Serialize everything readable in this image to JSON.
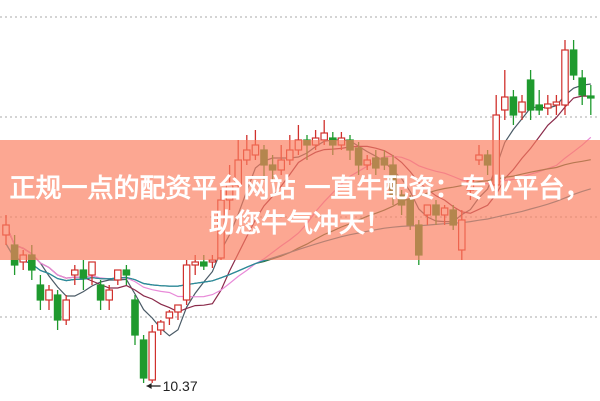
{
  "chart_data": {
    "type": "candlestick",
    "ylim": [
      10.19,
      14.2
    ],
    "gridlines": [
      14.03,
      13.03,
      12.03,
      11.03
    ],
    "grid": "dotted horizontal",
    "ohlc": [
      [
        11.85,
        12.05,
        11.75,
        11.95
      ],
      [
        11.75,
        11.85,
        11.45,
        11.55
      ],
      [
        11.58,
        11.7,
        11.5,
        11.65
      ],
      [
        11.65,
        11.75,
        11.4,
        11.5
      ],
      [
        11.35,
        11.45,
        11.1,
        11.2
      ],
      [
        11.2,
        11.35,
        11.1,
        11.3
      ],
      [
        11.25,
        11.3,
        10.9,
        11.0
      ],
      [
        11.0,
        11.25,
        10.95,
        11.2
      ],
      [
        11.45,
        11.55,
        11.35,
        11.5
      ],
      [
        11.5,
        11.6,
        11.3,
        11.42
      ],
      [
        11.45,
        11.58,
        11.35,
        11.58
      ],
      [
        11.35,
        11.4,
        11.1,
        11.2
      ],
      [
        11.2,
        11.35,
        11.1,
        11.3
      ],
      [
        11.4,
        11.5,
        11.35,
        11.5
      ],
      [
        11.5,
        11.55,
        11.35,
        11.45
      ],
      [
        11.2,
        11.25,
        10.75,
        10.85
      ],
      [
        10.8,
        10.85,
        10.37,
        10.42
      ],
      [
        10.4,
        10.95,
        10.37,
        10.88
      ],
      [
        10.9,
        11.0,
        10.85,
        10.98
      ],
      [
        11.02,
        11.1,
        10.95,
        11.08
      ],
      [
        11.08,
        11.15,
        11.0,
        11.15
      ],
      [
        11.2,
        11.6,
        11.15,
        11.55
      ],
      [
        11.55,
        11.65,
        11.45,
        11.58
      ],
      [
        11.58,
        11.65,
        11.5,
        11.54
      ],
      [
        11.58,
        11.65,
        11.52,
        11.6
      ],
      [
        11.62,
        12.3,
        11.6,
        12.2
      ],
      [
        12.2,
        12.55,
        12.1,
        12.35
      ],
      [
        12.35,
        12.8,
        12.3,
        12.6
      ],
      [
        12.6,
        12.85,
        12.55,
        12.7
      ],
      [
        12.65,
        12.9,
        12.6,
        12.75
      ],
      [
        12.7,
        12.75,
        12.4,
        12.55
      ],
      [
        12.55,
        12.65,
        12.4,
        12.5
      ],
      [
        12.5,
        12.75,
        12.45,
        12.6
      ],
      [
        12.6,
        12.85,
        12.55,
        12.7
      ],
      [
        12.7,
        12.95,
        12.65,
        12.8
      ],
      [
        12.8,
        12.85,
        12.6,
        12.75
      ],
      [
        12.75,
        12.9,
        12.7,
        12.82
      ],
      [
        12.8,
        13.0,
        12.75,
        12.87
      ],
      [
        12.82,
        12.88,
        12.65,
        12.75
      ],
      [
        12.75,
        12.88,
        12.7,
        12.82
      ],
      [
        12.8,
        12.85,
        12.6,
        12.7
      ],
      [
        12.72,
        12.78,
        12.45,
        12.55
      ],
      [
        12.55,
        12.65,
        12.5,
        12.6
      ],
      [
        12.62,
        12.7,
        12.45,
        12.52
      ],
      [
        12.62,
        12.7,
        12.5,
        12.55
      ],
      [
        12.55,
        12.65,
        12.15,
        12.25
      ],
      [
        12.25,
        12.3,
        12.05,
        12.15
      ],
      [
        12.2,
        12.25,
        11.9,
        11.95
      ],
      [
        11.95,
        12.0,
        11.55,
        11.65
      ],
      [
        12.05,
        12.15,
        11.95,
        12.15
      ],
      [
        12.15,
        12.2,
        11.95,
        12.05
      ],
      [
        12.05,
        12.15,
        11.95,
        12.12
      ],
      [
        12.1,
        12.15,
        11.9,
        11.95
      ],
      [
        11.7,
        12.1,
        11.6,
        12.0
      ],
      [
        12.3,
        12.4,
        12.2,
        12.4
      ],
      [
        12.6,
        12.75,
        12.55,
        12.65
      ],
      [
        12.65,
        12.7,
        12.45,
        12.55
      ],
      [
        12.35,
        13.25,
        12.3,
        13.05
      ],
      [
        13.1,
        13.5,
        13.0,
        13.23
      ],
      [
        13.23,
        13.3,
        12.95,
        13.05
      ],
      [
        13.08,
        13.25,
        13.0,
        13.18
      ],
      [
        13.4,
        13.5,
        13.0,
        13.1
      ],
      [
        13.15,
        13.3,
        13.05,
        13.1
      ],
      [
        13.12,
        13.25,
        13.05,
        13.16
      ],
      [
        13.15,
        13.25,
        13.05,
        13.18
      ],
      [
        13.15,
        13.8,
        13.05,
        13.7
      ],
      [
        13.7,
        13.8,
        13.4,
        13.45
      ],
      [
        13.42,
        13.5,
        13.15,
        13.25
      ],
      [
        13.24,
        13.35,
        13.05,
        13.22
      ]
    ],
    "moving_averages": [
      {
        "period": 5,
        "color": "#4a5a66"
      },
      {
        "period": 10,
        "color": "#8a2a4a"
      },
      {
        "period": 20,
        "color": "#e88ad8"
      },
      {
        "period": 30,
        "color": "#2e6e3a"
      },
      {
        "period": 60,
        "color": "#2a8aa0"
      }
    ],
    "up_color": "#d0312d",
    "down_color": "#1f9a2e",
    "annotations": [
      {
        "text": "10.37",
        "price": 10.37,
        "candle": 16
      }
    ]
  },
  "banner": {
    "line1": "正规一点的配资平台网站 一直牛配资：专业平台，",
    "line2": "助您牛气冲天！",
    "color": "#fa7d5f"
  }
}
